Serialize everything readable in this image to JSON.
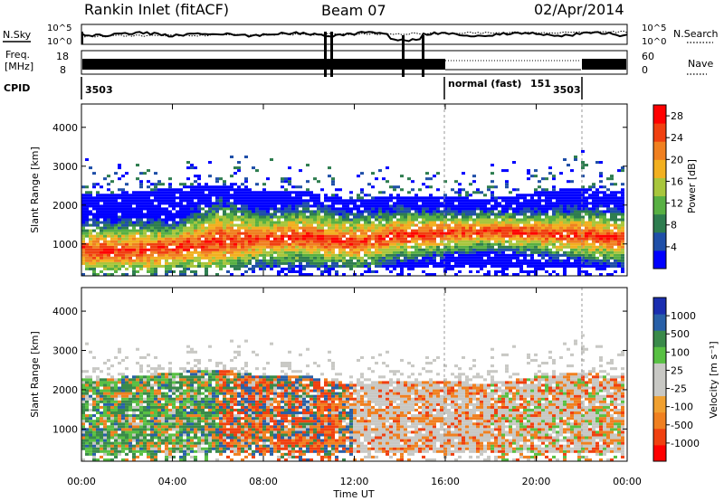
{
  "header": {
    "station": "Rankin Inlet (fitACF)",
    "beam": "Beam 07",
    "date": "02/Apr/2014"
  },
  "strips": {
    "nsky_label": "N.Sky",
    "nsky_ticks": [
      "10^5",
      "10^0"
    ],
    "nsearch_label": "N.Search",
    "freq_label": "Freq.",
    "freq_unit": "[MHz]",
    "freq_ticks": [
      "8",
      "18"
    ],
    "nave_ticks": [
      "60",
      "0"
    ],
    "nave_label": "Nave",
    "cpid_label": "CPID",
    "cpid_segments": [
      "3503",
      "normal (fast)",
      "151",
      "3503"
    ]
  },
  "colors": {
    "power_scale": [
      "#0000ff",
      "#1f4fa8",
      "#2e7d4f",
      "#58b043",
      "#a8c63c",
      "#f2b020",
      "#f08020",
      "#f04010",
      "#ff0000"
    ],
    "velocity_scale": [
      "#ff0000",
      "#f04010",
      "#f08020",
      "#f0a030",
      "#c8c8c4",
      "#c8c8c4",
      "#58c043",
      "#3a8a4a",
      "#2860a8",
      "#1a2eb0"
    ]
  },
  "chart_data": [
    {
      "type": "heatmap",
      "name": "power",
      "ylabel": "Slant Range [km]",
      "xlabel": "",
      "x_ticks": [
        "00:00",
        "04:00",
        "08:00",
        "12:00",
        "16:00",
        "20:00",
        "00:00"
      ],
      "x_range_hours": [
        0,
        24
      ],
      "ylim": [
        180,
        4600
      ],
      "y_ticks": [
        1000,
        2000,
        3000,
        4000
      ],
      "colorbar": {
        "label": "Power [dB]",
        "ticks": [
          4,
          8,
          12,
          16,
          20,
          24,
          28
        ],
        "range": [
          0,
          30
        ]
      },
      "profile": [
        {
          "h": 0,
          "center": 800,
          "width": 650,
          "edge": 2250
        },
        {
          "h": 2,
          "center": 780,
          "width": 700,
          "edge": 2300
        },
        {
          "h": 4,
          "center": 850,
          "width": 600,
          "edge": 2400
        },
        {
          "h": 6,
          "center": 1050,
          "width": 900,
          "edge": 2500
        },
        {
          "h": 8,
          "center": 1100,
          "width": 600,
          "edge": 2300
        },
        {
          "h": 10,
          "center": 1150,
          "width": 700,
          "edge": 2300
        },
        {
          "h": 12,
          "center": 1000,
          "width": 650,
          "edge": 2100
        },
        {
          "h": 14,
          "center": 1200,
          "width": 600,
          "edge": 2200
        },
        {
          "h": 16,
          "center": 1250,
          "width": 500,
          "edge": 2200
        },
        {
          "h": 18,
          "center": 1300,
          "width": 450,
          "edge": 2100
        },
        {
          "h": 20,
          "center": 1250,
          "width": 500,
          "edge": 2300
        },
        {
          "h": 22,
          "center": 1200,
          "width": 600,
          "edge": 2400
        },
        {
          "h": 24,
          "center": 1100,
          "width": 600,
          "edge": 2300
        }
      ]
    },
    {
      "type": "heatmap",
      "name": "velocity",
      "ylabel": "Slant Range [km]",
      "xlabel": "Time UT",
      "x_ticks": [
        "00:00",
        "04:00",
        "08:00",
        "12:00",
        "16:00",
        "20:00",
        "00:00"
      ],
      "x_range_hours": [
        0,
        24
      ],
      "ylim": [
        180,
        4600
      ],
      "y_ticks": [
        1000,
        2000,
        3000,
        4000
      ],
      "colorbar": {
        "label": "Velocity [m s⁻¹]",
        "ticks": [
          "1000",
          "500",
          "100",
          "25",
          "-25",
          "-100",
          "-500",
          "-1000"
        ]
      }
    }
  ]
}
